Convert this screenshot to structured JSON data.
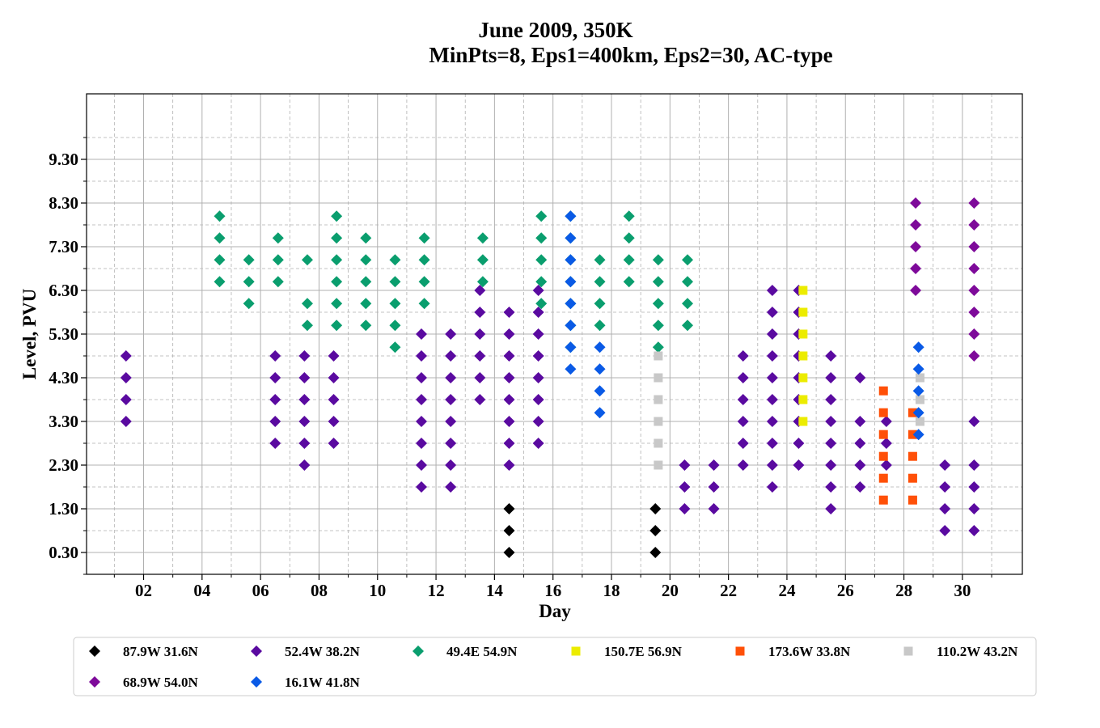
{
  "chart_data": {
    "type": "scatter",
    "title_line1": "June 2009, 350K",
    "title_line2": "MinPts=8, Eps1=400km, Eps2=30, AC-type",
    "xlabel": "Day",
    "ylabel": "Level, PVU",
    "xlim": [
      0.05,
      32.05
    ],
    "ylim": [
      -0.2,
      10.8
    ],
    "x_tick_labels": [
      "02",
      "04",
      "06",
      "08",
      "10",
      "12",
      "14",
      "16",
      "18",
      "20",
      "22",
      "24",
      "26",
      "28",
      "30"
    ],
    "x_ticks": [
      2,
      4,
      6,
      8,
      10,
      12,
      14,
      16,
      18,
      20,
      22,
      24,
      26,
      28,
      30
    ],
    "y_tick_labels": [
      "0.30",
      "1.30",
      "2.30",
      "3.30",
      "4.30",
      "5.30",
      "6.30",
      "7.30",
      "8.30",
      "9.30"
    ],
    "y_ticks": [
      0.3,
      1.3,
      2.3,
      3.3,
      4.3,
      5.3,
      6.3,
      7.3,
      8.3,
      9.3
    ],
    "grid": true,
    "legend_position": "bottom",
    "series": [
      {
        "name": "87.9W 31.6N",
        "color": "#000000",
        "marker": "diamond",
        "points": [
          [
            14.5,
            0.3
          ],
          [
            14.5,
            0.8
          ],
          [
            14.5,
            1.3
          ],
          [
            19.5,
            0.3
          ],
          [
            19.5,
            0.8
          ],
          [
            19.5,
            1.3
          ]
        ]
      },
      {
        "name": "52.4W 38.2N",
        "color": "#5a0aa0",
        "marker": "diamond",
        "points": [
          [
            1.4,
            3.3
          ],
          [
            1.4,
            3.8
          ],
          [
            1.4,
            4.3
          ],
          [
            1.4,
            4.8
          ],
          [
            6.5,
            2.8
          ],
          [
            6.5,
            3.3
          ],
          [
            6.5,
            3.8
          ],
          [
            6.5,
            4.3
          ],
          [
            6.5,
            4.8
          ],
          [
            7.5,
            2.3
          ],
          [
            7.5,
            2.8
          ],
          [
            7.5,
            3.3
          ],
          [
            7.5,
            3.8
          ],
          [
            7.5,
            4.3
          ],
          [
            7.5,
            4.8
          ],
          [
            8.5,
            2.8
          ],
          [
            8.5,
            3.3
          ],
          [
            8.5,
            3.8
          ],
          [
            8.5,
            4.3
          ],
          [
            8.5,
            4.8
          ],
          [
            11.5,
            1.8
          ],
          [
            11.5,
            2.3
          ],
          [
            11.5,
            2.8
          ],
          [
            11.5,
            3.3
          ],
          [
            11.5,
            3.8
          ],
          [
            11.5,
            4.3
          ],
          [
            11.5,
            4.8
          ],
          [
            11.5,
            5.3
          ],
          [
            12.5,
            1.8
          ],
          [
            12.5,
            2.3
          ],
          [
            12.5,
            2.8
          ],
          [
            12.5,
            3.3
          ],
          [
            12.5,
            3.8
          ],
          [
            12.5,
            4.3
          ],
          [
            12.5,
            4.8
          ],
          [
            12.5,
            5.3
          ],
          [
            13.5,
            3.8
          ],
          [
            13.5,
            4.3
          ],
          [
            13.5,
            4.8
          ],
          [
            13.5,
            5.3
          ],
          [
            13.5,
            5.8
          ],
          [
            13.5,
            6.3
          ],
          [
            14.5,
            2.3
          ],
          [
            14.5,
            2.8
          ],
          [
            14.5,
            3.3
          ],
          [
            14.5,
            3.8
          ],
          [
            14.5,
            4.3
          ],
          [
            14.5,
            4.8
          ],
          [
            14.5,
            5.3
          ],
          [
            14.5,
            5.8
          ],
          [
            15.5,
            2.8
          ],
          [
            15.5,
            3.3
          ],
          [
            15.5,
            3.8
          ],
          [
            15.5,
            4.3
          ],
          [
            15.5,
            4.8
          ],
          [
            15.5,
            5.3
          ],
          [
            15.5,
            5.8
          ],
          [
            15.5,
            6.3
          ],
          [
            20.5,
            1.3
          ],
          [
            20.5,
            1.8
          ],
          [
            20.5,
            2.3
          ],
          [
            21.5,
            1.3
          ],
          [
            21.5,
            1.8
          ],
          [
            21.5,
            2.3
          ],
          [
            22.5,
            2.3
          ],
          [
            22.5,
            2.8
          ],
          [
            22.5,
            3.3
          ],
          [
            22.5,
            3.8
          ],
          [
            22.5,
            4.3
          ],
          [
            22.5,
            4.8
          ],
          [
            23.5,
            1.8
          ],
          [
            23.5,
            2.3
          ],
          [
            23.5,
            2.8
          ],
          [
            23.5,
            3.3
          ],
          [
            23.5,
            3.8
          ],
          [
            23.5,
            4.3
          ],
          [
            23.5,
            4.8
          ],
          [
            23.5,
            5.3
          ],
          [
            23.5,
            5.8
          ],
          [
            23.5,
            6.3
          ],
          [
            24.4,
            2.3
          ],
          [
            24.4,
            2.8
          ],
          [
            24.4,
            3.3
          ],
          [
            24.4,
            3.8
          ],
          [
            24.4,
            4.3
          ],
          [
            24.4,
            4.8
          ],
          [
            24.4,
            5.3
          ],
          [
            24.4,
            5.8
          ],
          [
            24.4,
            6.3
          ],
          [
            25.5,
            1.3
          ],
          [
            25.5,
            1.8
          ],
          [
            25.5,
            2.3
          ],
          [
            25.5,
            2.8
          ],
          [
            25.5,
            3.3
          ],
          [
            25.5,
            3.8
          ],
          [
            25.5,
            4.3
          ],
          [
            25.5,
            4.8
          ],
          [
            26.5,
            1.8
          ],
          [
            26.5,
            2.3
          ],
          [
            26.5,
            2.8
          ],
          [
            26.5,
            3.3
          ],
          [
            26.5,
            4.3
          ],
          [
            27.4,
            2.3
          ],
          [
            27.4,
            2.8
          ],
          [
            27.4,
            3.3
          ],
          [
            29.4,
            0.8
          ],
          [
            29.4,
            1.3
          ],
          [
            29.4,
            1.8
          ],
          [
            29.4,
            2.3
          ],
          [
            30.4,
            0.8
          ],
          [
            30.4,
            1.3
          ],
          [
            30.4,
            1.8
          ],
          [
            30.4,
            2.3
          ],
          [
            30.4,
            3.3
          ]
        ]
      },
      {
        "name": "49.4E 54.9N",
        "color": "#0a9e6e",
        "marker": "diamond",
        "points": [
          [
            4.6,
            6.5
          ],
          [
            4.6,
            7.0
          ],
          [
            4.6,
            7.5
          ],
          [
            4.6,
            8.0
          ],
          [
            5.6,
            6.0
          ],
          [
            5.6,
            6.5
          ],
          [
            5.6,
            7.0
          ],
          [
            6.6,
            6.5
          ],
          [
            6.6,
            7.0
          ],
          [
            6.6,
            7.5
          ],
          [
            7.6,
            5.5
          ],
          [
            7.6,
            6.0
          ],
          [
            7.6,
            7.0
          ],
          [
            8.6,
            5.5
          ],
          [
            8.6,
            6.0
          ],
          [
            8.6,
            6.5
          ],
          [
            8.6,
            7.0
          ],
          [
            8.6,
            7.5
          ],
          [
            8.6,
            8.0
          ],
          [
            9.6,
            5.5
          ],
          [
            9.6,
            6.0
          ],
          [
            9.6,
            6.5
          ],
          [
            9.6,
            7.0
          ],
          [
            9.6,
            7.5
          ],
          [
            10.6,
            5.0
          ],
          [
            10.6,
            5.5
          ],
          [
            10.6,
            6.0
          ],
          [
            10.6,
            6.5
          ],
          [
            10.6,
            7.0
          ],
          [
            11.6,
            6.0
          ],
          [
            11.6,
            6.5
          ],
          [
            11.6,
            7.0
          ],
          [
            11.6,
            7.5
          ],
          [
            13.6,
            6.5
          ],
          [
            13.6,
            7.0
          ],
          [
            13.6,
            7.5
          ],
          [
            15.6,
            6.0
          ],
          [
            15.6,
            6.5
          ],
          [
            15.6,
            7.0
          ],
          [
            15.6,
            7.5
          ],
          [
            15.6,
            8.0
          ],
          [
            16.6,
            5.0
          ],
          [
            16.6,
            5.5
          ],
          [
            16.6,
            6.0
          ],
          [
            16.6,
            6.5
          ],
          [
            16.6,
            7.0
          ],
          [
            16.6,
            7.5
          ],
          [
            16.6,
            8.0
          ],
          [
            17.6,
            5.5
          ],
          [
            17.6,
            6.0
          ],
          [
            17.6,
            6.5
          ],
          [
            17.6,
            7.0
          ],
          [
            18.6,
            6.5
          ],
          [
            18.6,
            7.0
          ],
          [
            18.6,
            7.5
          ],
          [
            18.6,
            8.0
          ],
          [
            19.6,
            5.0
          ],
          [
            19.6,
            5.5
          ],
          [
            19.6,
            6.0
          ],
          [
            19.6,
            6.5
          ],
          [
            19.6,
            7.0
          ],
          [
            20.6,
            5.5
          ],
          [
            20.6,
            6.0
          ],
          [
            20.6,
            6.5
          ],
          [
            20.6,
            7.0
          ]
        ]
      },
      {
        "name": "150.7E 56.9N",
        "color": "#ecec00",
        "marker": "square",
        "points": [
          [
            24.55,
            3.3
          ],
          [
            24.55,
            3.8
          ],
          [
            24.55,
            4.3
          ],
          [
            24.55,
            4.8
          ],
          [
            24.55,
            5.3
          ],
          [
            24.55,
            5.8
          ],
          [
            24.55,
            6.3
          ]
        ]
      },
      {
        "name": "173.6W 33.8N",
        "color": "#ff5008",
        "marker": "square",
        "points": [
          [
            27.3,
            1.5
          ],
          [
            27.3,
            2.0
          ],
          [
            27.3,
            2.5
          ],
          [
            27.3,
            3.0
          ],
          [
            27.3,
            3.5
          ],
          [
            27.3,
            4.0
          ],
          [
            28.3,
            1.5
          ],
          [
            28.3,
            2.0
          ],
          [
            28.3,
            2.5
          ],
          [
            28.3,
            3.0
          ],
          [
            28.3,
            3.5
          ]
        ]
      },
      {
        "name": "110.2W 43.2N",
        "color": "#c8c8c8",
        "marker": "square",
        "points": [
          [
            19.6,
            2.3
          ],
          [
            19.6,
            2.8
          ],
          [
            19.6,
            3.3
          ],
          [
            19.6,
            3.8
          ],
          [
            19.6,
            4.3
          ],
          [
            19.6,
            4.8
          ],
          [
            28.55,
            3.3
          ],
          [
            28.55,
            3.8
          ],
          [
            28.55,
            4.3
          ]
        ]
      },
      {
        "name": "68.9W 54.0N",
        "color": "#7e0a9a",
        "marker": "diamond",
        "points": [
          [
            28.4,
            6.3
          ],
          [
            28.4,
            6.8
          ],
          [
            28.4,
            7.3
          ],
          [
            28.4,
            7.8
          ],
          [
            28.4,
            8.3
          ],
          [
            30.4,
            4.8
          ],
          [
            30.4,
            5.3
          ],
          [
            30.4,
            5.8
          ],
          [
            30.4,
            6.3
          ],
          [
            30.4,
            6.8
          ],
          [
            30.4,
            7.3
          ],
          [
            30.4,
            7.8
          ],
          [
            30.4,
            8.3
          ]
        ]
      },
      {
        "name": "16.1W 41.8N",
        "color": "#0a5ae6",
        "marker": "diamond",
        "points": [
          [
            16.6,
            4.5
          ],
          [
            16.6,
            5.0
          ],
          [
            16.6,
            5.5
          ],
          [
            16.6,
            6.0
          ],
          [
            16.6,
            6.5
          ],
          [
            16.6,
            7.0
          ],
          [
            16.6,
            7.5
          ],
          [
            16.6,
            8.0
          ],
          [
            17.6,
            3.5
          ],
          [
            17.6,
            4.0
          ],
          [
            17.6,
            4.5
          ],
          [
            17.6,
            5.0
          ],
          [
            28.5,
            3.0
          ],
          [
            28.5,
            3.5
          ],
          [
            28.5,
            4.0
          ],
          [
            28.5,
            4.5
          ],
          [
            28.5,
            5.0
          ]
        ]
      }
    ]
  }
}
